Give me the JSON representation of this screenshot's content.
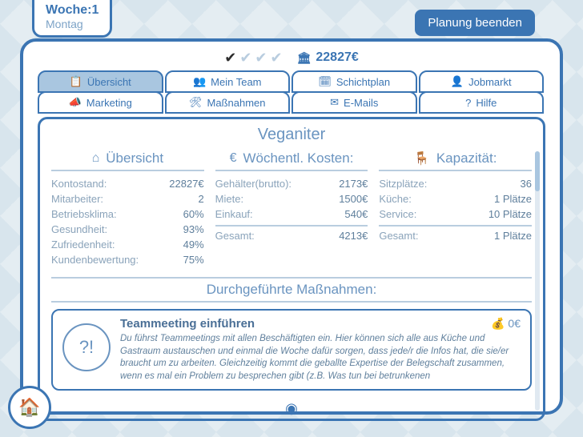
{
  "colors": {
    "primary": "#3b75b3",
    "muted": "#6a94c0",
    "text": "#8aa3ba",
    "panel_bg": "#ffffff",
    "tab_active": "#a9c6e0",
    "divider": "#b9cddf"
  },
  "header": {
    "week_label": "Woche:1",
    "day": "Montag",
    "end_planning": "Planung beenden",
    "money": "22827€",
    "checks": [
      true,
      false,
      false,
      false
    ]
  },
  "tabs": [
    {
      "icon": "📋",
      "label": "Übersicht",
      "active": true
    },
    {
      "icon": "👥",
      "label": "Mein Team",
      "active": false
    },
    {
      "icon": "🗓",
      "label": "Schichtplan",
      "active": false
    },
    {
      "icon": "👤",
      "label": "Jobmarkt",
      "active": false
    },
    {
      "icon": "📣",
      "label": "Marketing",
      "active": false
    },
    {
      "icon": "🛠",
      "label": "Maßnahmen",
      "active": false
    },
    {
      "icon": "✉",
      "label": "E-Mails",
      "active": false
    },
    {
      "icon": "?",
      "label": "Hilfe",
      "active": false
    }
  ],
  "restaurant_name": "Veganiter",
  "overview": {
    "title": "Übersicht",
    "icon": "⌂",
    "rows": [
      {
        "label": "Kontostand:",
        "value": "22827€"
      },
      {
        "label": "Mitarbeiter:",
        "value": "2"
      },
      {
        "label": "Betriebsklima:",
        "value": "60%"
      },
      {
        "label": "Gesundheit:",
        "value": "93%"
      },
      {
        "label": "Zufriedenheit:",
        "value": "49%"
      },
      {
        "label": "Kundenbewertung:",
        "value": "75%"
      }
    ]
  },
  "costs": {
    "title": "Wöchentl. Kosten:",
    "icon": "€",
    "rows": [
      {
        "label": "Gehälter(brutto):",
        "value": "2173€"
      },
      {
        "label": "Miete:",
        "value": "1500€"
      },
      {
        "label": "Einkauf:",
        "value": "540€"
      }
    ],
    "total": {
      "label": "Gesamt:",
      "value": "4213€"
    }
  },
  "capacity": {
    "title": "Kapazität:",
    "icon": "🪑",
    "rows": [
      {
        "label": "Sitzplätze:",
        "value": "36"
      },
      {
        "label": "Küche:",
        "value": "1 Plätze"
      },
      {
        "label": "Service:",
        "value": "10 Plätze"
      }
    ],
    "total": {
      "label": "Gesamt:",
      "value": "1 Plätze"
    }
  },
  "measures": {
    "section_title": "Durchgeführte Maßnahmen:",
    "items": [
      {
        "title": "Teammeeting einführen",
        "cost": "0€",
        "icon": "?!",
        "description": "Du führst Teammeetings mit allen Beschäftigten ein. Hier können sich alle aus Küche und Gastraum austauschen und einmal die Woche dafür sorgen, dass jede/r die Infos hat, die sie/er braucht um zu arbeiten. Gleichzeitig kommt die geballte Expertise der Belegschaft zusammen, wenn es mal ein Problem zu besprechen gibt (z.B. Was tun bei betrunkenen"
      }
    ]
  }
}
